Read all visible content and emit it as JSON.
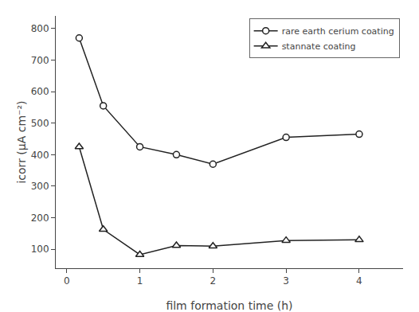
{
  "chart_data": {
    "type": "line",
    "xlabel": "film formation time (h)",
    "ylabel": "icorr (μA cm⁻²)",
    "x": [
      0.17,
      0.5,
      1.0,
      1.5,
      2.0,
      3.0,
      4.0
    ],
    "series": [
      {
        "name": "rare earth cerium coating",
        "color": "#222222",
        "marker": "circle",
        "values": [
          770,
          555,
          425,
          400,
          370,
          455,
          465
        ]
      },
      {
        "name": "stannate coating",
        "color": "#222222",
        "marker": "triangle-up",
        "values": [
          425,
          163,
          83,
          112,
          110,
          128,
          130
        ]
      }
    ],
    "xlim": [
      -0.15,
      4.6
    ],
    "xticks": [
      0,
      1,
      2,
      3,
      4
    ],
    "ylim": [
      40,
      840
    ],
    "yticks": [
      100,
      200,
      300,
      400,
      500,
      600,
      700,
      800
    ],
    "grid": false,
    "legend": "upper right"
  }
}
